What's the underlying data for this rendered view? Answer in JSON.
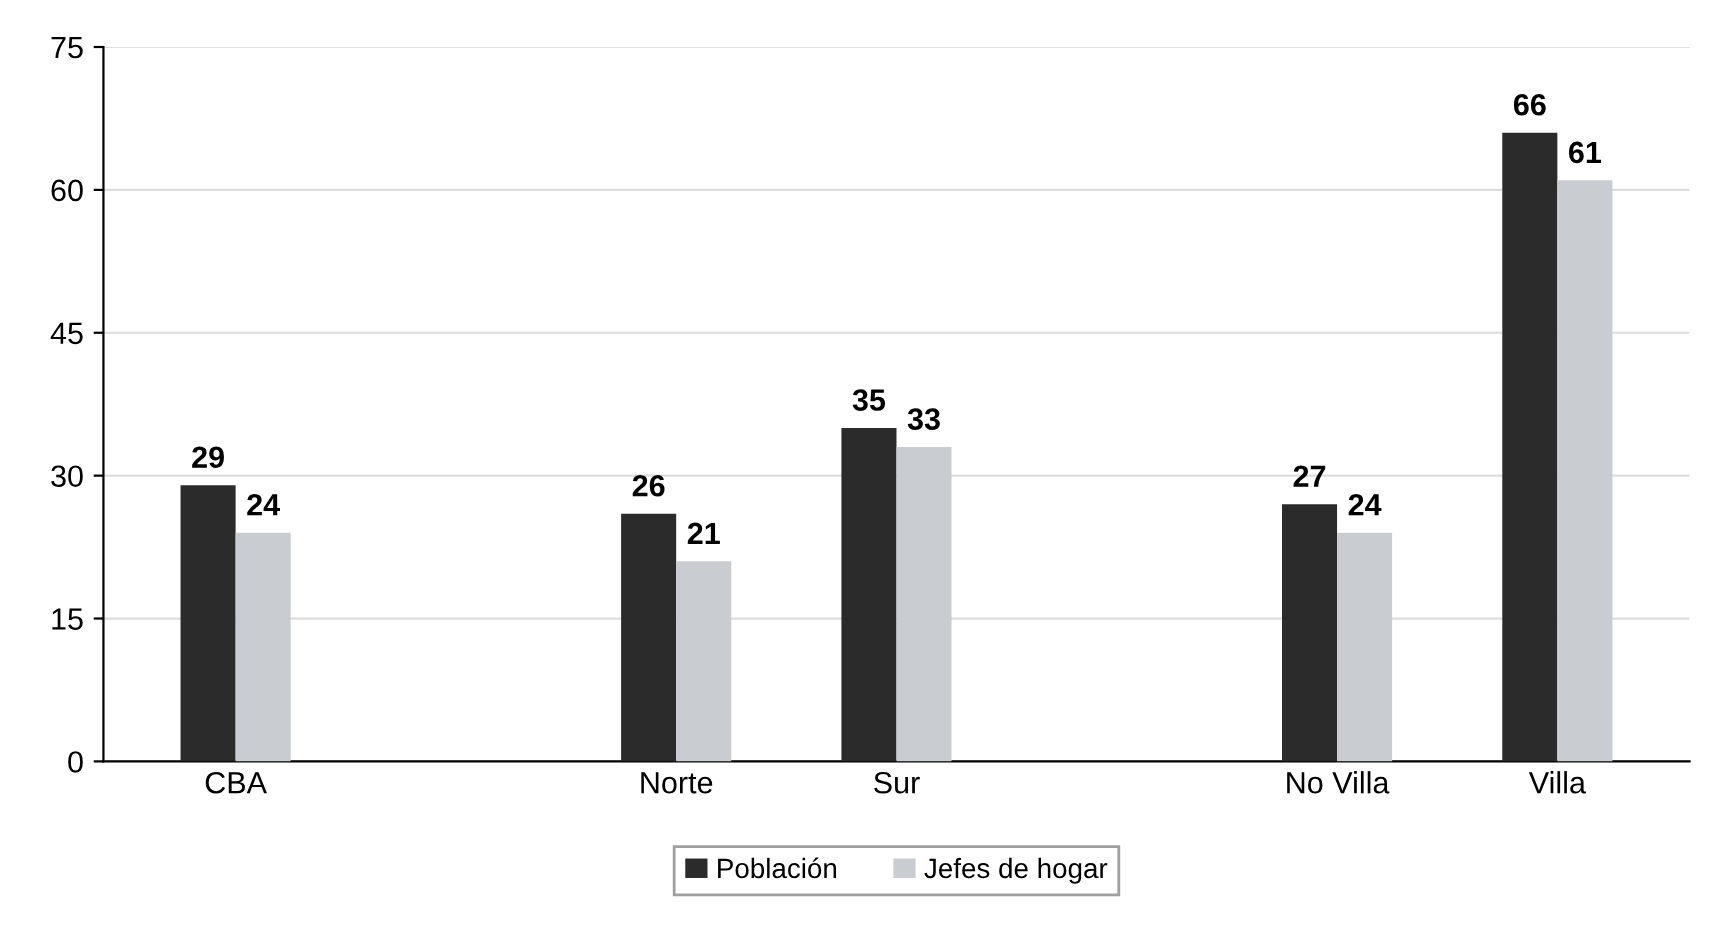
{
  "chart_data": {
    "type": "bar",
    "categories": [
      "CBA",
      null,
      "Norte",
      "Sur",
      null,
      "No Villa",
      "Villa"
    ],
    "series": [
      {
        "name": "Población",
        "color": "#2b2b2b",
        "values": [
          29,
          null,
          26,
          35,
          null,
          27,
          66
        ]
      },
      {
        "name": "Jefes de hogar",
        "color": "#c9cdd1",
        "values": [
          24,
          null,
          21,
          33,
          null,
          24,
          61
        ]
      }
    ],
    "ylim": [
      0,
      75
    ],
    "yticks": [
      0,
      15,
      30,
      45,
      60,
      75
    ],
    "grid": "y",
    "legend": "bottom",
    "data_labels": true
  }
}
